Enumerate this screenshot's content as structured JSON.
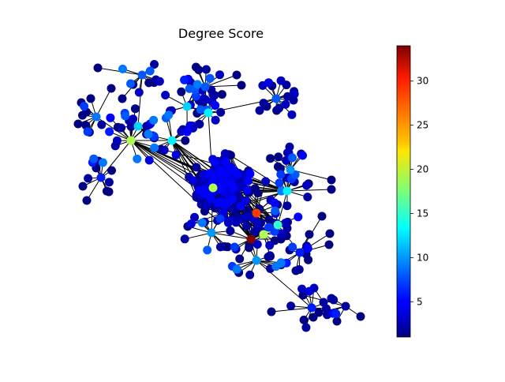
{
  "chart_data": {
    "type": "scatter",
    "title": "Degree Score",
    "colormap": "jet",
    "colorbar": {
      "min": 1,
      "max": 34,
      "ticks": [
        5,
        10,
        15,
        20,
        25,
        30
      ],
      "tick_labels": [
        "5",
        "10",
        "15",
        "20",
        "25",
        "30"
      ]
    },
    "edge_color": "#000000",
    "notable_nodes": [
      {
        "role": "max-degree hub",
        "degree": 34
      },
      {
        "role": "orange hub",
        "degree": 28
      },
      {
        "role": "green hubs",
        "degree": 19
      },
      {
        "role": "cyan hubs",
        "degree": 13
      }
    ],
    "node_count_approx": 450
  }
}
